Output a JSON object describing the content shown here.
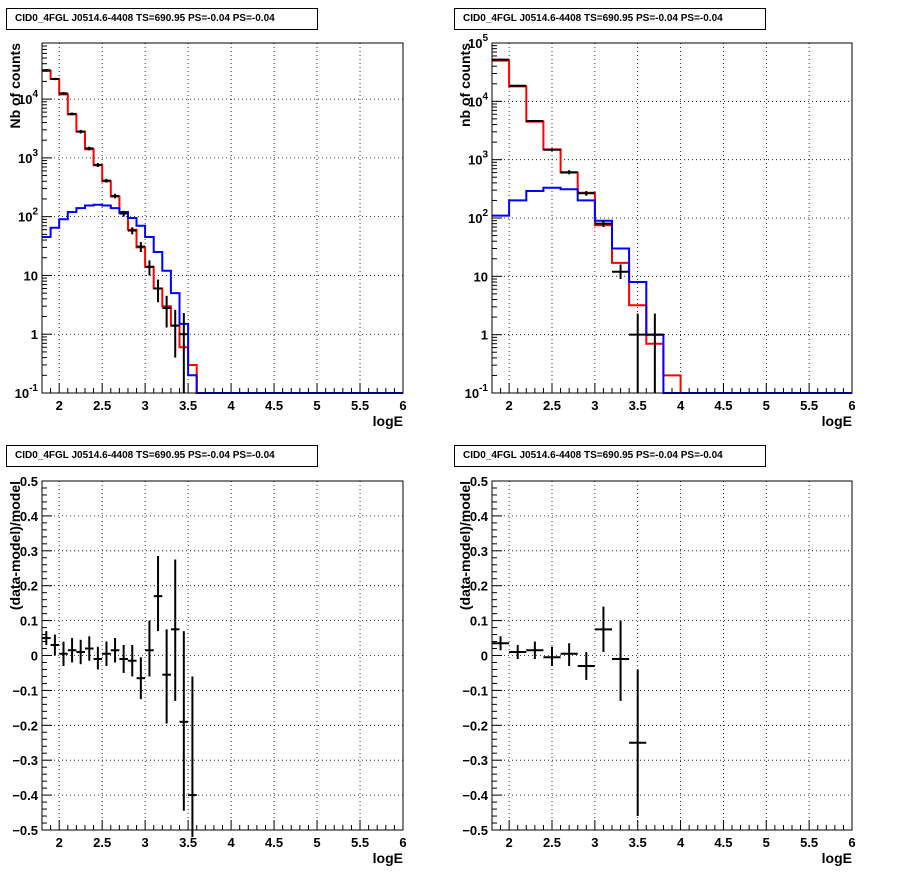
{
  "chart_data": [
    {
      "id": "p1",
      "type": "histogram",
      "title": "CID0_4FGL J0514.6-4408 TS=690.95 PS=-0.04 PS=-0.04",
      "xlabel": "logE",
      "ylabel": "Nb of counts",
      "xlim": [
        1.8,
        6.0
      ],
      "ylim": [
        0.1,
        90000
      ],
      "log_y": true,
      "grid": true,
      "x_ticks": [
        2,
        2.5,
        3,
        3.5,
        4,
        4.5,
        5,
        5.5,
        6
      ],
      "x_tick_labels": [
        "2",
        "2.5",
        "3",
        "3.5",
        "4",
        "4.5",
        "5",
        "5.5",
        "6"
      ],
      "y_ticks": [
        0.1,
        1,
        10,
        100,
        1000,
        10000
      ],
      "y_tick_labels": [
        "10^-1",
        "1",
        "10",
        "10^2",
        "10^3",
        "10^4"
      ],
      "bin_edges": [
        1.8,
        1.9,
        2.0,
        2.1,
        2.2,
        2.3,
        2.4,
        2.5,
        2.6,
        2.7,
        2.8,
        2.9,
        3.0,
        3.1,
        3.2,
        3.3,
        3.4,
        3.5,
        3.6,
        3.7,
        3.8,
        3.9,
        4.0,
        4.1,
        4.2,
        4.3,
        4.4,
        4.5,
        4.6,
        4.7,
        4.8,
        4.9,
        5.0,
        5.1,
        5.2,
        5.3,
        5.4,
        5.5,
        5.6,
        5.7,
        5.8,
        5.9,
        6.0
      ],
      "series": [
        {
          "color": "#ff0000",
          "values": [
            30000,
            22000,
            12000,
            5500,
            2800,
            1400,
            750,
            400,
            220,
            115,
            60,
            30,
            14,
            6,
            3,
            1.4,
            0.6,
            0.3,
            0.1,
            0.1,
            0.1,
            0.1,
            0.1,
            0.1,
            0.1,
            0.1,
            0.1,
            0.1,
            0.1,
            0.1,
            0.1,
            0.1,
            0.1,
            0.1,
            0.1,
            0.1,
            0.1,
            0.1,
            0.1,
            0.1,
            0.1,
            0.1
          ]
        },
        {
          "color": "#0000ff",
          "values": [
            45,
            65,
            90,
            120,
            140,
            155,
            160,
            155,
            140,
            120,
            95,
            70,
            45,
            25,
            12,
            5,
            1.5,
            0.2,
            0.1,
            0.1,
            0.1,
            0.1,
            0.1,
            0.1,
            0.1,
            0.1,
            0.1,
            0.1,
            0.1,
            0.1,
            0.1,
            0.1,
            0.1,
            0.1,
            0.1,
            0.1,
            0.1,
            0.1,
            0.1,
            0.1,
            0.1,
            0.1
          ]
        }
      ],
      "data_points": [
        {
          "x": 1.85,
          "y": 31000,
          "ylo": 29500,
          "yhi": 32500
        },
        {
          "x": 1.95,
          "y": 22000,
          "ylo": 21000,
          "yhi": 23000
        },
        {
          "x": 2.05,
          "y": 12500,
          "ylo": 11800,
          "yhi": 13200
        },
        {
          "x": 2.15,
          "y": 5600,
          "ylo": 5300,
          "yhi": 5900
        },
        {
          "x": 2.25,
          "y": 2800,
          "ylo": 2600,
          "yhi": 3000
        },
        {
          "x": 2.35,
          "y": 1450,
          "ylo": 1350,
          "yhi": 1550
        },
        {
          "x": 2.45,
          "y": 760,
          "ylo": 700,
          "yhi": 820
        },
        {
          "x": 2.55,
          "y": 410,
          "ylo": 380,
          "yhi": 440
        },
        {
          "x": 2.65,
          "y": 225,
          "ylo": 205,
          "yhi": 245
        },
        {
          "x": 2.75,
          "y": 113,
          "ylo": 100,
          "yhi": 126
        },
        {
          "x": 2.85,
          "y": 58,
          "ylo": 50,
          "yhi": 66
        },
        {
          "x": 2.95,
          "y": 31,
          "ylo": 25,
          "yhi": 37
        },
        {
          "x": 3.05,
          "y": 14,
          "ylo": 10,
          "yhi": 18
        },
        {
          "x": 3.15,
          "y": 6,
          "ylo": 3.5,
          "yhi": 8.5
        },
        {
          "x": 3.25,
          "y": 2.8,
          "ylo": 1.3,
          "yhi": 4.5
        },
        {
          "x": 3.35,
          "y": 1.4,
          "ylo": 0.4,
          "yhi": 2.6
        },
        {
          "x": 3.45,
          "y": 1.0,
          "ylo": 0.1,
          "yhi": 2.3
        }
      ]
    },
    {
      "id": "p2",
      "type": "histogram",
      "title": "CID0_4FGL J0514.6-4408 TS=690.95 PS=-0.04 PS=-0.04",
      "xlabel": "logE",
      "ylabel": "nb of counts",
      "xlim": [
        1.8,
        6.0
      ],
      "ylim": [
        0.1,
        100000
      ],
      "log_y": true,
      "grid": true,
      "x_ticks": [
        2,
        2.5,
        3,
        3.5,
        4,
        4.5,
        5,
        5.5,
        6
      ],
      "x_tick_labels": [
        "2",
        "2.5",
        "3",
        "3.5",
        "4",
        "4.5",
        "5",
        "5.5",
        "6"
      ],
      "y_ticks": [
        0.1,
        1,
        10,
        100,
        1000,
        10000,
        100000
      ],
      "y_tick_labels": [
        "10^-1",
        "1",
        "10",
        "10^2",
        "10^3",
        "10^4",
        "10^5"
      ],
      "bin_edges": [
        1.8,
        2.0,
        2.2,
        2.4,
        2.6,
        2.8,
        3.0,
        3.2,
        3.4,
        3.6,
        3.8,
        4.0,
        4.2,
        4.4,
        4.6,
        4.8,
        5.0,
        5.2,
        5.4,
        5.6,
        5.8,
        6.0
      ],
      "series": [
        {
          "color": "#ff0000",
          "values": [
            50000,
            18000,
            4500,
            1500,
            600,
            270,
            75,
            17,
            3.2,
            0.7,
            0.2,
            0.1,
            0.1,
            0.1,
            0.1,
            0.1,
            0.1,
            0.1,
            0.1,
            0.1,
            0.1
          ]
        },
        {
          "color": "#0000ff",
          "values": [
            110,
            200,
            290,
            330,
            310,
            200,
            90,
            30,
            8,
            1.0,
            0.1,
            0.1,
            0.1,
            0.1,
            0.1,
            0.1,
            0.1,
            0.1,
            0.1,
            0.1,
            0.1
          ]
        }
      ],
      "data_points": [
        {
          "x": 1.9,
          "y": 52000,
          "ylo": 50000,
          "yhi": 54000
        },
        {
          "x": 2.1,
          "y": 18500,
          "ylo": 17800,
          "yhi": 19200
        },
        {
          "x": 2.3,
          "y": 4600,
          "ylo": 4400,
          "yhi": 4800
        },
        {
          "x": 2.5,
          "y": 1480,
          "ylo": 1400,
          "yhi": 1560
        },
        {
          "x": 2.7,
          "y": 610,
          "ylo": 560,
          "yhi": 660
        },
        {
          "x": 2.9,
          "y": 265,
          "ylo": 240,
          "yhi": 290
        },
        {
          "x": 3.1,
          "y": 80,
          "ylo": 70,
          "yhi": 90
        },
        {
          "x": 3.3,
          "y": 12,
          "ylo": 9,
          "yhi": 16
        },
        {
          "x": 3.5,
          "y": 1.0,
          "ylo": 0.1,
          "yhi": 2.3
        },
        {
          "x": 3.7,
          "y": 1.0,
          "ylo": 0.1,
          "yhi": 2.3
        }
      ]
    },
    {
      "id": "p3",
      "type": "scatter",
      "title": "CID0_4FGL J0514.6-4408 TS=690.95 PS=-0.04 PS=-0.04",
      "xlabel": "logE",
      "ylabel": "(data-model)/model",
      "xlim": [
        1.8,
        6.0
      ],
      "ylim": [
        -0.5,
        0.5
      ],
      "log_y": false,
      "grid": true,
      "x_ticks": [
        2,
        2.5,
        3,
        3.5,
        4,
        4.5,
        5,
        5.5,
        6
      ],
      "x_tick_labels": [
        "2",
        "2.5",
        "3",
        "3.5",
        "4",
        "4.5",
        "5",
        "5.5",
        "6"
      ],
      "y_ticks": [
        -0.5,
        -0.4,
        -0.3,
        -0.2,
        -0.1,
        0,
        0.1,
        0.2,
        0.3,
        0.4,
        0.5
      ],
      "y_tick_labels": [
        "−0.5",
        "−0.4",
        "−0.3",
        "−0.2",
        "−0.1",
        "0",
        "0.1",
        "0.2",
        "0.3",
        "0.4",
        "0.5"
      ],
      "data_points": [
        {
          "x": 1.85,
          "y": 0.05,
          "ylo": 0.03,
          "yhi": 0.07,
          "xw": 0.05
        },
        {
          "x": 1.95,
          "y": 0.03,
          "ylo": 0.0,
          "yhi": 0.06,
          "xw": 0.05
        },
        {
          "x": 2.05,
          "y": 0.005,
          "ylo": -0.03,
          "yhi": 0.04,
          "xw": 0.05
        },
        {
          "x": 2.15,
          "y": 0.015,
          "ylo": -0.02,
          "yhi": 0.05,
          "xw": 0.05
        },
        {
          "x": 2.25,
          "y": 0.01,
          "ylo": -0.025,
          "yhi": 0.045,
          "xw": 0.05
        },
        {
          "x": 2.35,
          "y": 0.02,
          "ylo": -0.015,
          "yhi": 0.055,
          "xw": 0.05
        },
        {
          "x": 2.45,
          "y": -0.01,
          "ylo": -0.04,
          "yhi": 0.025,
          "xw": 0.05
        },
        {
          "x": 2.55,
          "y": 0.005,
          "ylo": -0.03,
          "yhi": 0.04,
          "xw": 0.05
        },
        {
          "x": 2.65,
          "y": 0.015,
          "ylo": -0.02,
          "yhi": 0.05,
          "xw": 0.05
        },
        {
          "x": 2.75,
          "y": -0.01,
          "ylo": -0.05,
          "yhi": 0.03,
          "xw": 0.05
        },
        {
          "x": 2.85,
          "y": -0.015,
          "ylo": -0.06,
          "yhi": 0.03,
          "xw": 0.05
        },
        {
          "x": 2.95,
          "y": -0.065,
          "ylo": -0.125,
          "yhi": -0.005,
          "xw": 0.05
        },
        {
          "x": 3.05,
          "y": 0.015,
          "ylo": -0.06,
          "yhi": 0.1,
          "xw": 0.05
        },
        {
          "x": 3.15,
          "y": 0.17,
          "ylo": 0.07,
          "yhi": 0.285,
          "xw": 0.05
        },
        {
          "x": 3.25,
          "y": -0.055,
          "ylo": -0.195,
          "yhi": 0.075,
          "xw": 0.05
        },
        {
          "x": 3.35,
          "y": 0.075,
          "ylo": -0.13,
          "yhi": 0.275,
          "xw": 0.05
        },
        {
          "x": 3.45,
          "y": -0.19,
          "ylo": -0.445,
          "yhi": 0.07,
          "xw": 0.05
        },
        {
          "x": 3.55,
          "y": -0.4,
          "ylo": -0.52,
          "yhi": -0.06,
          "xw": 0.05
        }
      ]
    },
    {
      "id": "p4",
      "type": "scatter",
      "title": "CID0_4FGL J0514.6-4408 TS=690.95 PS=-0.04 PS=-0.04",
      "xlabel": "logE",
      "ylabel": "(data-model)/model",
      "xlim": [
        1.8,
        6.0
      ],
      "ylim": [
        -0.5,
        0.5
      ],
      "log_y": false,
      "grid": true,
      "x_ticks": [
        2,
        2.5,
        3,
        3.5,
        4,
        4.5,
        5,
        5.5,
        6
      ],
      "x_tick_labels": [
        "2",
        "2.5",
        "3",
        "3.5",
        "4",
        "4.5",
        "5",
        "5.5",
        "6"
      ],
      "y_ticks": [
        -0.5,
        -0.4,
        -0.3,
        -0.2,
        -0.1,
        0,
        0.1,
        0.2,
        0.3,
        0.4,
        0.5
      ],
      "y_tick_labels": [
        "−0.5",
        "−0.4",
        "−0.3",
        "−0.2",
        "−0.1",
        "0",
        "0.1",
        "0.2",
        "0.3",
        "0.4",
        "0.5"
      ],
      "data_points": [
        {
          "x": 1.9,
          "y": 0.035,
          "ylo": 0.015,
          "yhi": 0.055,
          "xw": 0.1
        },
        {
          "x": 2.1,
          "y": 0.01,
          "ylo": -0.01,
          "yhi": 0.03,
          "xw": 0.1
        },
        {
          "x": 2.3,
          "y": 0.015,
          "ylo": -0.01,
          "yhi": 0.04,
          "xw": 0.1
        },
        {
          "x": 2.5,
          "y": -0.005,
          "ylo": -0.03,
          "yhi": 0.025,
          "xw": 0.1
        },
        {
          "x": 2.7,
          "y": 0.005,
          "ylo": -0.03,
          "yhi": 0.035,
          "xw": 0.1
        },
        {
          "x": 2.9,
          "y": -0.03,
          "ylo": -0.07,
          "yhi": 0.01,
          "xw": 0.1
        },
        {
          "x": 3.1,
          "y": 0.075,
          "ylo": 0.01,
          "yhi": 0.14,
          "xw": 0.1
        },
        {
          "x": 3.3,
          "y": -0.01,
          "ylo": -0.13,
          "yhi": 0.1,
          "xw": 0.1
        },
        {
          "x": 3.5,
          "y": -0.25,
          "ylo": -0.46,
          "yhi": -0.04,
          "xw": 0.1
        }
      ]
    }
  ]
}
